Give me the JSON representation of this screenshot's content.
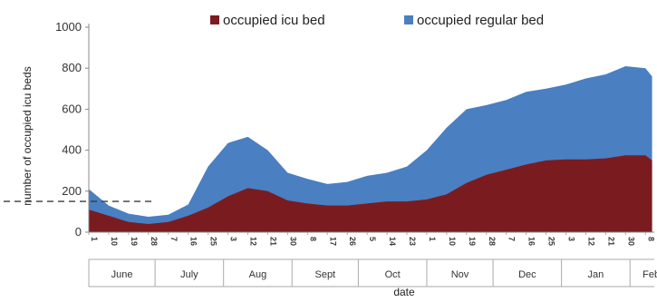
{
  "chart_data": {
    "type": "area",
    "stacked": true,
    "title": "",
    "xlabel": "date",
    "ylabel": "number of occupied icu beds",
    "ylim": [
      0,
      1000
    ],
    "yticks": [
      0,
      200,
      400,
      600,
      800,
      1000
    ],
    "grid": false,
    "legend_position": "top",
    "reference_line": {
      "value": 150,
      "style": "dashed"
    },
    "months": [
      "June",
      "July",
      "Aug",
      "Sept",
      "Oct",
      "Nov",
      "Dec",
      "Jan",
      "Feb"
    ],
    "tick_labels": [
      "1",
      "10",
      "19",
      "28",
      "7",
      "16",
      "25",
      "3",
      "12",
      "21",
      "30",
      "8",
      "17",
      "26",
      "5",
      "14",
      "23",
      "1",
      "10",
      "19",
      "28",
      "7",
      "16",
      "25",
      "3",
      "12",
      "21",
      "30",
      "8"
    ],
    "x": [
      "06-01",
      "06-10",
      "06-19",
      "06-28",
      "07-07",
      "07-16",
      "07-25",
      "08-03",
      "08-12",
      "08-21",
      "08-30",
      "09-08",
      "09-17",
      "09-26",
      "10-05",
      "10-14",
      "10-23",
      "11-01",
      "11-10",
      "11-19",
      "11-28",
      "12-07",
      "12-16",
      "12-25",
      "01-03",
      "01-12",
      "01-21",
      "01-30",
      "02-08",
      "02-11"
    ],
    "series": [
      {
        "name": "occupied icu bed",
        "color": "#7a1c1f",
        "values": [
          110,
          80,
          50,
          40,
          50,
          80,
          120,
          175,
          215,
          200,
          155,
          140,
          130,
          130,
          140,
          150,
          150,
          160,
          185,
          240,
          280,
          305,
          330,
          350,
          355,
          355,
          360,
          375,
          375,
          350
        ]
      },
      {
        "name": "occupied regular bed",
        "color": "#4a7fc1",
        "values": [
          100,
          50,
          40,
          35,
          35,
          55,
          200,
          260,
          250,
          200,
          135,
          120,
          105,
          115,
          135,
          140,
          170,
          240,
          325,
          360,
          340,
          340,
          355,
          350,
          365,
          395,
          410,
          435,
          425,
          410
        ]
      }
    ]
  }
}
